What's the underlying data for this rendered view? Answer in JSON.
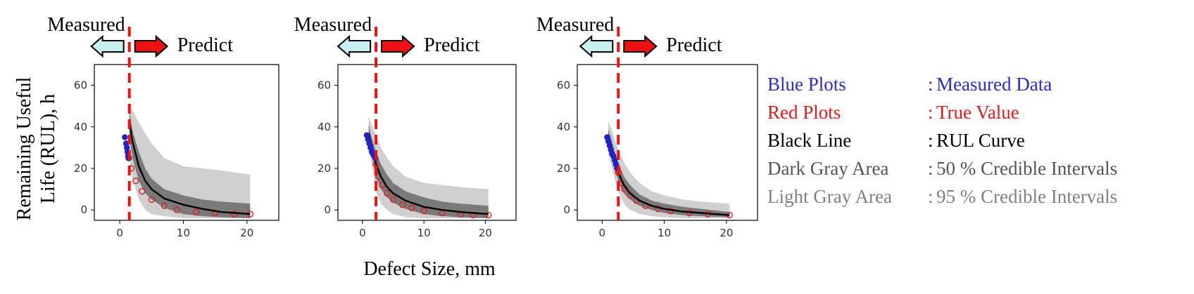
{
  "ylabel_line1": "Remaining Useful",
  "ylabel_line2": "Life (RUL), h",
  "xlabel": "Defect Size, mm",
  "measured_label": "Measured",
  "predict_label": "Predict",
  "colors": {
    "measured": "#2020c8",
    "true": "#e02020",
    "curve": "#000000",
    "band50": "#7a7a7a",
    "band95": "#d0d0d0",
    "threshold": "#ee1111",
    "arrow_measured": "#c8f0f0",
    "arrow_predict": "#ee1111"
  },
  "legend": [
    {
      "key": "Blue Plots",
      "sep": ":",
      "value": "Measured Data",
      "color": "#2a2ad0"
    },
    {
      "key": "Red Plots",
      "sep": ":",
      "value": "True Value",
      "color": "#e81818"
    },
    {
      "key": "Black Line",
      "sep": ":",
      "value": "RUL Curve",
      "color": "#000000"
    },
    {
      "key": "Dark Gray Area",
      "sep": ":",
      "value": "50 % Credible Intervals",
      "color": "#555555"
    },
    {
      "key": "Light Gray Area",
      "sep": ":",
      "value": "95 % Credible Intervals",
      "color": "#808080"
    }
  ],
  "chart_data": [
    {
      "type": "line",
      "xlim": [
        -4,
        25
      ],
      "ylim": [
        -5,
        70
      ],
      "xticks": [
        0,
        10,
        20
      ],
      "yticks": [
        0,
        20,
        40,
        60
      ],
      "threshold_x": 1.5,
      "grid": false,
      "rul_curve": {
        "x": [
          1.5,
          2,
          3,
          4,
          5,
          7,
          10,
          13,
          16,
          20.5
        ],
        "y": [
          43,
          33,
          21,
          14,
          10,
          5.5,
          2.5,
          0.5,
          -1,
          -2
        ]
      },
      "band50": {
        "x": [
          1.5,
          2,
          3,
          4,
          5,
          7,
          10,
          13,
          16,
          20.5
        ],
        "lower": [
          35,
          25,
          14,
          8,
          5,
          1,
          -2,
          -3,
          -3.5,
          -4
        ],
        "upper": [
          48,
          38,
          28,
          20,
          15,
          10,
          7,
          5,
          4,
          3
        ]
      },
      "band95": {
        "x": [
          1.5,
          2,
          3,
          4,
          5,
          7,
          10,
          13,
          16,
          20.5
        ],
        "lower": [
          25,
          15,
          5,
          0,
          -2,
          -3,
          -4,
          -4,
          -4,
          -4
        ],
        "upper": [
          52,
          48,
          42,
          37,
          32,
          25,
          21,
          20,
          19,
          17
        ]
      },
      "measured": {
        "x": [
          0.8,
          1.0,
          1.1,
          1.2,
          1.3,
          1.4
        ],
        "y": [
          35,
          32,
          30,
          28,
          26,
          25
        ]
      },
      "true_values": {
        "x": [
          1.4,
          1.8,
          2.5,
          3.5,
          5,
          7,
          9,
          12,
          15,
          18,
          20.5
        ],
        "y": [
          25,
          20,
          14,
          9,
          5,
          2,
          0,
          -1,
          -1.5,
          -2,
          -2
        ]
      }
    },
    {
      "type": "line",
      "xlim": [
        -4,
        25
      ],
      "ylim": [
        -5,
        70
      ],
      "xticks": [
        0,
        10,
        20
      ],
      "yticks": [
        0,
        20,
        40,
        60
      ],
      "threshold_x": 2.2,
      "grid": false,
      "rul_curve": {
        "x": [
          1.0,
          1.5,
          2.2,
          3,
          4,
          5,
          7,
          10,
          13,
          16,
          20.5
        ],
        "y": [
          37,
          31,
          22,
          16,
          11,
          8,
          4.5,
          1.5,
          0,
          -1,
          -2
        ]
      },
      "band50": {
        "x": [
          1.0,
          1.5,
          2.2,
          3,
          4,
          5,
          7,
          10,
          13,
          16,
          20.5
        ],
        "lower": [
          33,
          27,
          16,
          10,
          6,
          3.5,
          0.5,
          -2,
          -3,
          -3.5,
          -4
        ],
        "upper": [
          41,
          35,
          28,
          22,
          17,
          13,
          9,
          6,
          4,
          3,
          2
        ]
      },
      "band95": {
        "x": [
          1.0,
          1.5,
          2.2,
          3,
          4,
          5,
          7,
          10,
          13,
          16,
          20.5
        ],
        "lower": [
          29,
          22,
          9,
          3,
          0,
          -2,
          -3.5,
          -4,
          -4,
          -4,
          -4
        ],
        "upper": [
          45,
          41,
          36,
          30,
          25,
          21,
          16,
          13,
          12,
          11,
          10
        ]
      },
      "measured": {
        "x": [
          0.7,
          0.9,
          1.1,
          1.3,
          1.5,
          1.7,
          1.9,
          2.1
        ],
        "y": [
          36,
          34,
          32,
          30,
          28,
          27,
          26,
          25
        ]
      },
      "true_values": {
        "x": [
          2.2,
          2.6,
          3.2,
          4,
          5,
          6.5,
          8,
          10,
          13,
          16,
          18,
          20.5
        ],
        "y": [
          22,
          16,
          12,
          8,
          5,
          2.5,
          1,
          -0.5,
          -1.5,
          -2,
          -2.5,
          -2.5
        ]
      }
    },
    {
      "type": "line",
      "xlim": [
        -4,
        25
      ],
      "ylim": [
        -5,
        70
      ],
      "xticks": [
        0,
        10,
        20
      ],
      "yticks": [
        0,
        20,
        40,
        60
      ],
      "threshold_x": 2.6,
      "grid": false,
      "rul_curve": {
        "x": [
          1.0,
          1.5,
          2,
          2.6,
          3.5,
          4.5,
          6,
          8,
          10,
          13,
          16,
          20.5
        ],
        "y": [
          35,
          30,
          24,
          18,
          12,
          8,
          4.5,
          2,
          0.5,
          -0.8,
          -1.5,
          -2.5
        ]
      },
      "band50": {
        "x": [
          1.0,
          1.5,
          2,
          2.6,
          3.5,
          4.5,
          6,
          8,
          10,
          13,
          16,
          20.5
        ],
        "lower": [
          31,
          26,
          20,
          14,
          8,
          5,
          2,
          0,
          -1.5,
          -2.5,
          -3,
          -3.5
        ],
        "upper": [
          39,
          34,
          28,
          23,
          16,
          12,
          7.5,
          4.5,
          3,
          1.5,
          0.5,
          -1
        ]
      },
      "band95": {
        "x": [
          1.0,
          1.5,
          2,
          2.6,
          3.5,
          4.5,
          6,
          8,
          10,
          13,
          16,
          20.5
        ],
        "lower": [
          27,
          21,
          15,
          9,
          3,
          0,
          -2,
          -3,
          -3.5,
          -4,
          -4,
          -4
        ],
        "upper": [
          43,
          39,
          34,
          29,
          23,
          18,
          13,
          9,
          7,
          5,
          4,
          3
        ]
      },
      "measured": {
        "x": [
          0.8,
          1.0,
          1.2,
          1.4,
          1.6,
          1.8,
          2.0,
          2.2,
          2.4
        ],
        "y": [
          35,
          33,
          31,
          29,
          27,
          26,
          24,
          22,
          20
        ]
      },
      "true_values": {
        "x": [
          2.6,
          3,
          3.6,
          4.5,
          5.5,
          7,
          9,
          11,
          14,
          17,
          20.5
        ],
        "y": [
          18,
          13,
          10,
          7,
          4.5,
          2,
          0.5,
          -0.5,
          -1.5,
          -2,
          -2.5
        ]
      }
    }
  ]
}
